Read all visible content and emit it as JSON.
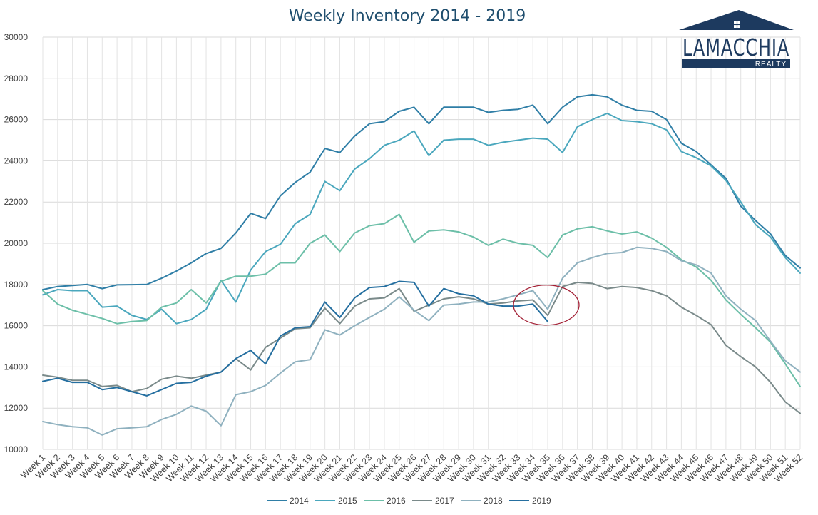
{
  "chart_data": {
    "type": "line",
    "title": "Weekly Inventory 2014 - 2019",
    "xlabel": "",
    "ylabel": "",
    "ylim": [
      10000,
      30000
    ],
    "yticks": [
      10000,
      12000,
      14000,
      16000,
      18000,
      20000,
      22000,
      24000,
      26000,
      28000,
      30000
    ],
    "grid": true,
    "legend_position": "bottom",
    "categories": [
      "Week 1",
      "Week 2",
      "Week 3",
      "Week 4",
      "Week 5",
      "Week 6",
      "Week 7",
      "Week 8",
      "Week 9",
      "Week 10",
      "Week 11",
      "Week 12",
      "Week 13",
      "Week 14",
      "Week 15",
      "Week 16",
      "Week 17",
      "Week 18",
      "Week 19",
      "Week 20",
      "Week 21",
      "Week 22",
      "Week 23",
      "Week 24",
      "Week 25",
      "Week 26",
      "Week 27",
      "Week 28",
      "Week 29",
      "Week 30",
      "Week 31",
      "Week 32",
      "Week 33",
      "Week 34",
      "Week 35",
      "Week 36",
      "Week 37",
      "Week 38",
      "Week 39",
      "Week 40",
      "Week 41",
      "Week 42",
      "Week 43",
      "Week 44",
      "Week 45",
      "Week 46",
      "Week 47",
      "Week 48",
      "Week 49",
      "Week 50",
      "Week 51",
      "Week 52"
    ],
    "series": [
      {
        "name": "2014",
        "color": "#2f7ea6",
        "values": [
          17750,
          17900,
          17950,
          18000,
          17800,
          17980,
          17990,
          18000,
          18300,
          18650,
          19050,
          19500,
          19750,
          20500,
          21450,
          21200,
          22300,
          22950,
          23450,
          24600,
          24400,
          25200,
          25800,
          25900,
          26400,
          26600,
          25800,
          26600,
          26600,
          26600,
          26350,
          26450,
          26500,
          26700,
          25800,
          26600,
          27100,
          27200,
          27100,
          26700,
          26450,
          26400,
          26000,
          24850,
          24450,
          23800,
          23150,
          21800,
          21100,
          20450,
          19400,
          18800
        ]
      },
      {
        "name": "2015",
        "color": "#4aa7bd",
        "values": [
          17500,
          17750,
          17700,
          17700,
          16900,
          16950,
          16500,
          16300,
          16800,
          16100,
          16300,
          16800,
          18200,
          17150,
          18700,
          19600,
          19950,
          20950,
          21400,
          23000,
          22550,
          23600,
          24100,
          24750,
          25000,
          25450,
          24250,
          25000,
          25050,
          25050,
          24750,
          24900,
          25000,
          25100,
          25050,
          24400,
          25650,
          26000,
          26300,
          25950,
          25900,
          25800,
          25500,
          24450,
          24150,
          23750,
          23050,
          22000,
          20900,
          20300,
          19300,
          18550
        ]
      },
      {
        "name": "2016",
        "color": "#6cbfa8",
        "values": [
          17700,
          17050,
          16750,
          16550,
          16350,
          16100,
          16200,
          16250,
          16900,
          17100,
          17750,
          17100,
          18150,
          18400,
          18400,
          18500,
          19050,
          19050,
          20000,
          20400,
          19600,
          20500,
          20850,
          20950,
          21400,
          20050,
          20600,
          20650,
          20550,
          20300,
          19900,
          20200,
          20000,
          19900,
          19300,
          20400,
          20700,
          20800,
          20600,
          20450,
          20550,
          20250,
          19800,
          19200,
          18850,
          18200,
          17250,
          16550,
          15900,
          15200,
          14150,
          13050
        ]
      },
      {
        "name": "2017",
        "color": "#7a8a8a",
        "values": [
          13600,
          13500,
          13350,
          13350,
          13050,
          13100,
          12800,
          12950,
          13400,
          13550,
          13450,
          13600,
          13750,
          14400,
          13850,
          14950,
          15400,
          15850,
          15900,
          16850,
          16100,
          16950,
          17300,
          17350,
          17800,
          16700,
          17000,
          17300,
          17400,
          17300,
          17050,
          17100,
          17200,
          17250,
          16500,
          17900,
          18100,
          18050,
          17800,
          17900,
          17850,
          17700,
          17450,
          16900,
          16500,
          16050,
          15050,
          14500,
          14000,
          13250,
          12300,
          11750
        ]
      },
      {
        "name": "2018",
        "color": "#8fb1bf",
        "values": [
          11350,
          11200,
          11100,
          11050,
          10700,
          11000,
          11050,
          11100,
          11450,
          11700,
          12100,
          11850,
          11150,
          12650,
          12800,
          13100,
          13700,
          14250,
          14350,
          15800,
          15550,
          16000,
          16400,
          16800,
          17400,
          16750,
          16250,
          17000,
          17050,
          17150,
          17150,
          17300,
          17500,
          17700,
          16800,
          18300,
          19050,
          19300,
          19500,
          19550,
          19800,
          19750,
          19600,
          19150,
          18950,
          18550,
          17450,
          16800,
          16250,
          15250,
          14300,
          13750
        ]
      },
      {
        "name": "2019",
        "color": "#256fa0",
        "values": [
          13300,
          13450,
          13250,
          13250,
          12900,
          13000,
          12800,
          12600,
          12900,
          13200,
          13250,
          13550,
          13750,
          14400,
          14800,
          14150,
          15500,
          15900,
          15950,
          17150,
          16400,
          17350,
          17850,
          17900,
          18150,
          18100,
          16950,
          17800,
          17550,
          17450,
          17050,
          16950,
          16950,
          17050,
          16200,
          null,
          null,
          null,
          null,
          null,
          null,
          null,
          null,
          null,
          null,
          null,
          null,
          null,
          null,
          null,
          null,
          null
        ]
      }
    ],
    "annotations": [
      {
        "type": "ellipse",
        "x_center": 35,
        "y_center": 17000,
        "color": "#a32035"
      }
    ]
  },
  "logo": {
    "name": "LAMACCHIA",
    "sub": "REALTY",
    "color": "#1d3a5f",
    "icon": "house-roof-icon"
  }
}
